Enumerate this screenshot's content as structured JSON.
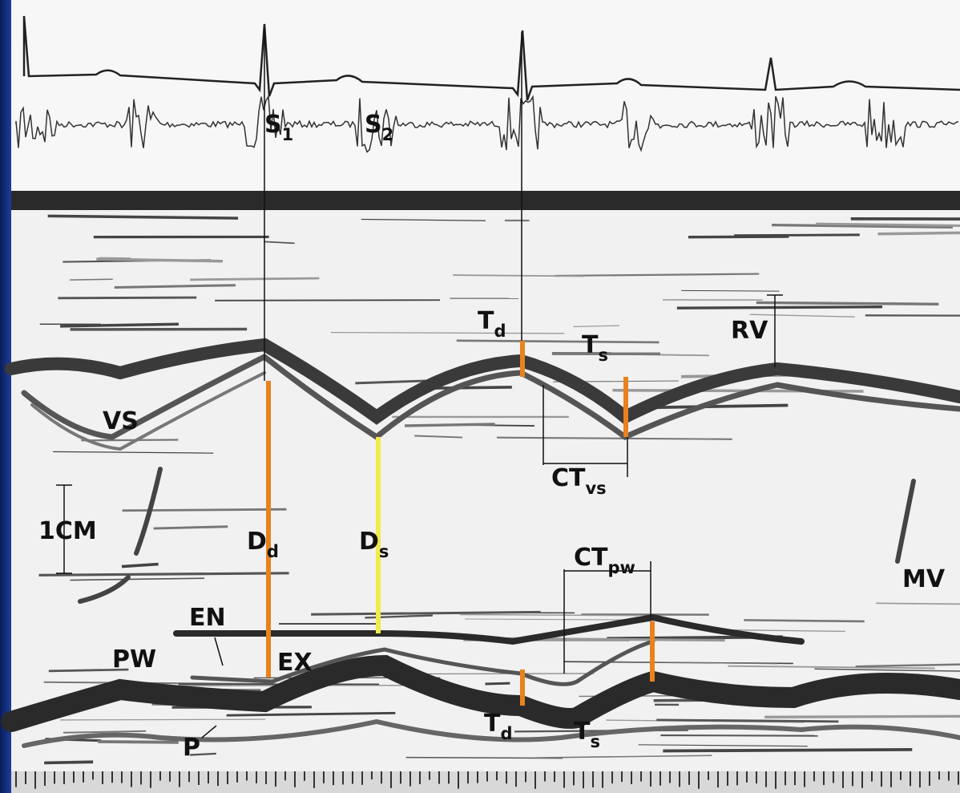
{
  "labels": [
    {
      "text": "S",
      "sub": "1"
    },
    {
      "text": "S",
      "sub": "2"
    },
    {
      "text": "T",
      "sub": "d"
    },
    {
      "text": "T",
      "sub": "s"
    },
    {
      "text": "RV"
    },
    {
      "text": "VS"
    },
    {
      "text": "CT",
      "sub": "vs"
    },
    {
      "text": "1CM"
    },
    {
      "text": "D",
      "sub": "d"
    },
    {
      "text": "D",
      "sub": "s"
    },
    {
      "text": "CT",
      "sub": "pw"
    },
    {
      "text": "MV"
    },
    {
      "text": "EN"
    },
    {
      "text": "EX"
    },
    {
      "text": "PW"
    },
    {
      "text": "P"
    },
    {
      "text": "T",
      "sub": "d"
    },
    {
      "text": "T",
      "sub": "s"
    }
  ]
}
